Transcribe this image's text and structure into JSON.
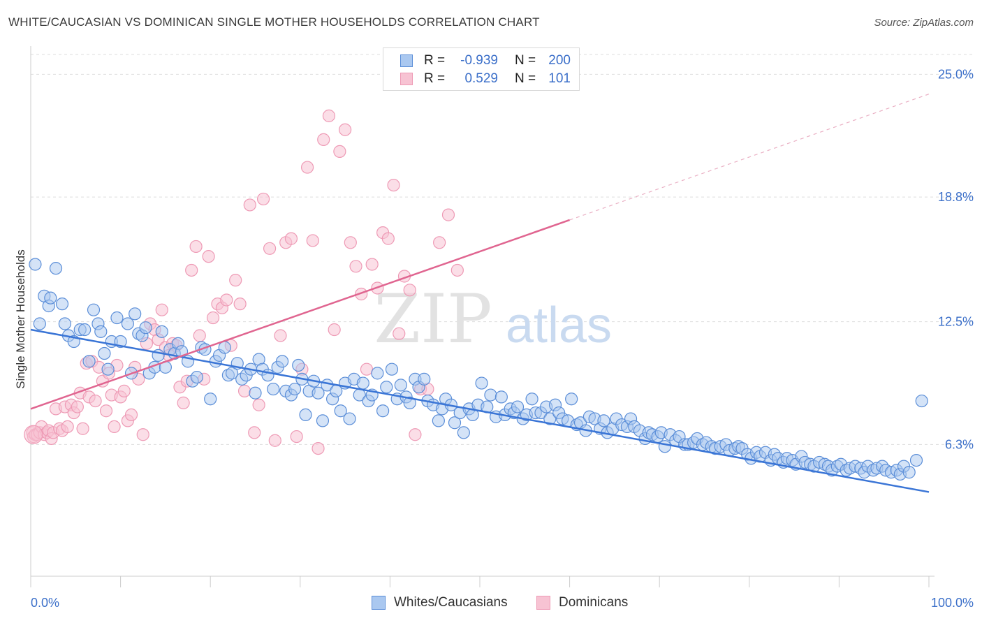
{
  "header": {
    "title": "WHITE/CAUCASIAN VS DOMINICAN SINGLE MOTHER HOUSEHOLDS CORRELATION CHART",
    "source": "Source: ZipAtlas.com"
  },
  "watermark": {
    "part1": "ZIP",
    "part2": "atlas"
  },
  "legend": {
    "row1": {
      "r_label": "R =",
      "r_value": "-0.939",
      "n_label": "N =",
      "n_value": "200"
    },
    "row2": {
      "r_label": "R =",
      "r_value": "0.529",
      "n_label": "N =",
      "n_value": "101"
    }
  },
  "colors": {
    "blue": "#3a75d6",
    "blue_fill": "#aac8f0",
    "blue_stroke": "#5b8ed8",
    "pink": "#e06590",
    "pink_fill": "#f7c3d3",
    "pink_stroke": "#ee9ab5",
    "axis_text": "#3b6fc9",
    "grid": "#dddddd"
  },
  "chart_data": {
    "type": "scatter",
    "ylabel": "Single Mother Households",
    "xlim": [
      0,
      100
    ],
    "ylim": [
      0,
      26
    ],
    "x_tick_labels": [
      "0.0%",
      "100.0%"
    ],
    "y_ticks": [
      6.3,
      12.5,
      18.8,
      25.0
    ],
    "y_tick_labels": [
      "6.3%",
      "12.5%",
      "18.8%",
      "25.0%"
    ],
    "grid": true,
    "legend_position": "top-center",
    "series": [
      {
        "name": "Whites/Caucasians",
        "color": "#3a75d6",
        "trend": {
          "x0": 0,
          "y0": 12.1,
          "x1": 100,
          "y1": 3.9
        },
        "points": [
          [
            0.5,
            15.4
          ],
          [
            1,
            12.4
          ],
          [
            1.5,
            13.8
          ],
          [
            2,
            13.3
          ],
          [
            2.2,
            13.7
          ],
          [
            2.8,
            15.2
          ],
          [
            3.5,
            13.4
          ],
          [
            3.8,
            12.4
          ],
          [
            4.2,
            11.8
          ],
          [
            4.8,
            11.5
          ],
          [
            5.5,
            12.1
          ],
          [
            6,
            12.1
          ],
          [
            6.5,
            10.5
          ],
          [
            7,
            13.1
          ],
          [
            7.5,
            12.4
          ],
          [
            7.8,
            12.0
          ],
          [
            8.2,
            10.9
          ],
          [
            8.6,
            10.1
          ],
          [
            9,
            11.5
          ],
          [
            9.6,
            12.7
          ],
          [
            10,
            11.5
          ],
          [
            10.8,
            12.4
          ],
          [
            11.2,
            9.9
          ],
          [
            11.6,
            12.9
          ],
          [
            12,
            11.9
          ],
          [
            12.4,
            11.8
          ],
          [
            12.8,
            12.2
          ],
          [
            13.2,
            9.9
          ],
          [
            13.8,
            10.2
          ],
          [
            14.2,
            10.8
          ],
          [
            14.6,
            12.0
          ],
          [
            15,
            10.2
          ],
          [
            15.5,
            11.1
          ],
          [
            16,
            10.9
          ],
          [
            16.4,
            11.4
          ],
          [
            16.8,
            11.0
          ],
          [
            17.5,
            10.5
          ],
          [
            18,
            9.5
          ],
          [
            18.5,
            9.7
          ],
          [
            19,
            11.2
          ],
          [
            19.4,
            11.1
          ],
          [
            20,
            8.6
          ],
          [
            20.6,
            10.5
          ],
          [
            21,
            10.8
          ],
          [
            21.6,
            11.2
          ],
          [
            22,
            9.8
          ],
          [
            22.4,
            9.9
          ],
          [
            23,
            10.4
          ],
          [
            23.5,
            9.6
          ],
          [
            24,
            9.8
          ],
          [
            24.5,
            10.1
          ],
          [
            25,
            8.9
          ],
          [
            25.4,
            10.6
          ],
          [
            25.8,
            10.1
          ],
          [
            26.4,
            9.8
          ],
          [
            27,
            9.1
          ],
          [
            27.5,
            10.2
          ],
          [
            28,
            10.5
          ],
          [
            28.4,
            9.0
          ],
          [
            29,
            8.8
          ],
          [
            29.4,
            9.1
          ],
          [
            29.8,
            10.3
          ],
          [
            30.2,
            9.6
          ],
          [
            30.6,
            7.8
          ],
          [
            31,
            9.0
          ],
          [
            31.5,
            9.5
          ],
          [
            32,
            8.9
          ],
          [
            32.5,
            7.5
          ],
          [
            33,
            9.3
          ],
          [
            33.6,
            8.6
          ],
          [
            34,
            9.0
          ],
          [
            34.5,
            8.0
          ],
          [
            35,
            9.4
          ],
          [
            35.5,
            7.6
          ],
          [
            36,
            9.6
          ],
          [
            36.6,
            8.8
          ],
          [
            37,
            9.4
          ],
          [
            37.6,
            8.5
          ],
          [
            38,
            8.8
          ],
          [
            38.6,
            9.9
          ],
          [
            39.2,
            8.0
          ],
          [
            39.6,
            9.2
          ],
          [
            40.2,
            10.1
          ],
          [
            40.8,
            8.6
          ],
          [
            41.2,
            9.3
          ],
          [
            41.8,
            8.7
          ],
          [
            42.2,
            8.4
          ],
          [
            42.8,
            9.6
          ],
          [
            43.2,
            9.2
          ],
          [
            43.8,
            9.6
          ],
          [
            44.2,
            8.5
          ],
          [
            44.8,
            8.3
          ],
          [
            45.4,
            7.5
          ],
          [
            45.8,
            8.1
          ],
          [
            46.2,
            8.6
          ],
          [
            46.8,
            8.3
          ],
          [
            47.2,
            7.4
          ],
          [
            47.8,
            7.9
          ],
          [
            48.2,
            6.9
          ],
          [
            48.8,
            8.1
          ],
          [
            49.2,
            7.8
          ],
          [
            49.8,
            8.3
          ],
          [
            50.2,
            9.4
          ],
          [
            50.8,
            8.2
          ],
          [
            51.2,
            8.8
          ],
          [
            51.8,
            7.7
          ],
          [
            52.4,
            8.7
          ],
          [
            52.8,
            7.8
          ],
          [
            53.4,
            8.1
          ],
          [
            53.8,
            7.9
          ],
          [
            54.2,
            8.2
          ],
          [
            54.8,
            7.6
          ],
          [
            55.2,
            7.8
          ],
          [
            55.8,
            8.6
          ],
          [
            56.2,
            7.9
          ],
          [
            56.8,
            7.9
          ],
          [
            57.4,
            8.2
          ],
          [
            57.8,
            7.6
          ],
          [
            58.4,
            8.3
          ],
          [
            58.8,
            7.9
          ],
          [
            59.2,
            7.6
          ],
          [
            59.8,
            7.5
          ],
          [
            60.2,
            8.6
          ],
          [
            60.8,
            7.3
          ],
          [
            61.2,
            7.4
          ],
          [
            61.8,
            7.0
          ],
          [
            62.2,
            7.7
          ],
          [
            62.8,
            7.6
          ],
          [
            63.4,
            7.1
          ],
          [
            63.8,
            7.5
          ],
          [
            64.2,
            6.9
          ],
          [
            64.8,
            7.1
          ],
          [
            65.2,
            7.6
          ],
          [
            65.8,
            7.3
          ],
          [
            66.4,
            7.2
          ],
          [
            66.8,
            7.6
          ],
          [
            67.2,
            7.2
          ],
          [
            67.8,
            7.0
          ],
          [
            68.4,
            6.6
          ],
          [
            68.8,
            6.9
          ],
          [
            69.2,
            6.8
          ],
          [
            69.8,
            6.7
          ],
          [
            70.2,
            6.9
          ],
          [
            70.6,
            6.2
          ],
          [
            71.2,
            6.8
          ],
          [
            71.8,
            6.5
          ],
          [
            72.2,
            6.7
          ],
          [
            72.8,
            6.3
          ],
          [
            73.2,
            6.3
          ],
          [
            73.8,
            6.4
          ],
          [
            74.2,
            6.6
          ],
          [
            74.8,
            6.3
          ],
          [
            75.2,
            6.4
          ],
          [
            75.8,
            6.2
          ],
          [
            76.2,
            6.1
          ],
          [
            76.8,
            6.2
          ],
          [
            77.4,
            6.3
          ],
          [
            77.8,
            6.0
          ],
          [
            78.4,
            6.1
          ],
          [
            78.8,
            6.2
          ],
          [
            79.2,
            6.1
          ],
          [
            79.8,
            5.8
          ],
          [
            80.2,
            5.6
          ],
          [
            80.8,
            5.9
          ],
          [
            81.2,
            5.7
          ],
          [
            81.8,
            5.9
          ],
          [
            82.4,
            5.5
          ],
          [
            82.8,
            5.8
          ],
          [
            83.2,
            5.6
          ],
          [
            83.8,
            5.4
          ],
          [
            84.2,
            5.6
          ],
          [
            84.8,
            5.5
          ],
          [
            85.2,
            5.3
          ],
          [
            85.8,
            5.7
          ],
          [
            86.2,
            5.4
          ],
          [
            86.8,
            5.3
          ],
          [
            87.2,
            5.2
          ],
          [
            87.8,
            5.4
          ],
          [
            88.4,
            5.3
          ],
          [
            88.8,
            5.2
          ],
          [
            89.2,
            5.0
          ],
          [
            89.8,
            5.2
          ],
          [
            90.2,
            5.3
          ],
          [
            90.8,
            5.0
          ],
          [
            91.2,
            5.1
          ],
          [
            91.8,
            5.2
          ],
          [
            92.4,
            5.1
          ],
          [
            92.8,
            4.9
          ],
          [
            93.2,
            5.2
          ],
          [
            93.8,
            5.0
          ],
          [
            94.2,
            5.1
          ],
          [
            94.8,
            5.2
          ],
          [
            95.2,
            5.0
          ],
          [
            95.8,
            4.9
          ],
          [
            96.4,
            5.0
          ],
          [
            96.8,
            4.8
          ],
          [
            97.2,
            5.2
          ],
          [
            97.8,
            4.9
          ],
          [
            98.6,
            5.5
          ],
          [
            99.2,
            8.5
          ]
        ]
      },
      {
        "name": "Dominicans",
        "color": "#e06590",
        "trend": {
          "x0": 0,
          "y0": 8.1,
          "x1": 100,
          "y1": 24.0,
          "solid_until_x": 60
        },
        "points": [
          [
            0.2,
            6.9
          ],
          [
            0.3,
            6.7
          ],
          [
            0.5,
            6.8
          ],
          [
            0.7,
            6.8
          ],
          [
            1.0,
            6.9
          ],
          [
            1.2,
            7.2
          ],
          [
            1.5,
            6.8
          ],
          [
            1.8,
            6.9
          ],
          [
            2.0,
            7.0
          ],
          [
            2.3,
            6.6
          ],
          [
            2.5,
            6.9
          ],
          [
            2.8,
            8.1
          ],
          [
            3.2,
            7.1
          ],
          [
            3.5,
            7.0
          ],
          [
            3.8,
            8.2
          ],
          [
            4.1,
            7.2
          ],
          [
            4.5,
            8.3
          ],
          [
            4.8,
            7.9
          ],
          [
            5.2,
            8.2
          ],
          [
            5.5,
            8.9
          ],
          [
            5.8,
            7.1
          ],
          [
            6.2,
            10.4
          ],
          [
            6.5,
            8.7
          ],
          [
            6.8,
            10.5
          ],
          [
            7.2,
            8.5
          ],
          [
            7.6,
            10.2
          ],
          [
            8.0,
            9.5
          ],
          [
            8.4,
            8.0
          ],
          [
            8.7,
            9.9
          ],
          [
            9.0,
            8.8
          ],
          [
            9.3,
            7.2
          ],
          [
            9.6,
            10.3
          ],
          [
            10.0,
            8.7
          ],
          [
            10.4,
            9.0
          ],
          [
            10.8,
            7.5
          ],
          [
            11.2,
            7.8
          ],
          [
            11.6,
            10.2
          ],
          [
            12.0,
            9.6
          ],
          [
            12.5,
            6.8
          ],
          [
            12.9,
            11.4
          ],
          [
            13.3,
            12.4
          ],
          [
            13.8,
            12.1
          ],
          [
            14.2,
            11.6
          ],
          [
            14.6,
            13.1
          ],
          [
            15.0,
            11.2
          ],
          [
            15.4,
            10.8
          ],
          [
            15.8,
            11.4
          ],
          [
            16.2,
            11.3
          ],
          [
            16.6,
            9.2
          ],
          [
            17.0,
            8.4
          ],
          [
            17.4,
            9.5
          ],
          [
            17.9,
            15.1
          ],
          [
            18.4,
            16.3
          ],
          [
            18.8,
            11.8
          ],
          [
            19.3,
            9.6
          ],
          [
            19.8,
            15.8
          ],
          [
            20.3,
            12.7
          ],
          [
            20.8,
            13.4
          ],
          [
            21.3,
            13.2
          ],
          [
            21.8,
            13.6
          ],
          [
            22.3,
            11.3
          ],
          [
            22.8,
            14.6
          ],
          [
            23.3,
            13.4
          ],
          [
            23.8,
            9.0
          ],
          [
            24.4,
            18.4
          ],
          [
            24.9,
            6.9
          ],
          [
            25.4,
            8.3
          ],
          [
            25.9,
            18.7
          ],
          [
            26.6,
            16.2
          ],
          [
            27.2,
            6.5
          ],
          [
            27.8,
            11.8
          ],
          [
            28.4,
            16.5
          ],
          [
            29.0,
            16.7
          ],
          [
            29.6,
            6.7
          ],
          [
            30.2,
            10.1
          ],
          [
            30.8,
            20.3
          ],
          [
            31.4,
            16.6
          ],
          [
            32.0,
            6.1
          ],
          [
            32.6,
            21.7
          ],
          [
            33.2,
            22.9
          ],
          [
            33.8,
            12.1
          ],
          [
            34.4,
            21.1
          ],
          [
            35.0,
            22.2
          ],
          [
            35.6,
            16.5
          ],
          [
            36.2,
            15.3
          ],
          [
            36.8,
            13.9
          ],
          [
            37.4,
            10.1
          ],
          [
            38.0,
            15.4
          ],
          [
            38.6,
            14.2
          ],
          [
            39.2,
            17.0
          ],
          [
            39.8,
            16.7
          ],
          [
            40.4,
            19.4
          ],
          [
            41.0,
            11.9
          ],
          [
            41.6,
            14.8
          ],
          [
            42.2,
            14.1
          ],
          [
            42.8,
            6.8
          ],
          [
            43.4,
            9.1
          ],
          [
            44.2,
            9.1
          ],
          [
            45.5,
            16.5
          ],
          [
            46.5,
            17.9
          ],
          [
            47.5,
            15.1
          ]
        ]
      }
    ]
  },
  "bottom_legend": {
    "item1": "Whites/Caucasians",
    "item2": "Dominicans"
  }
}
